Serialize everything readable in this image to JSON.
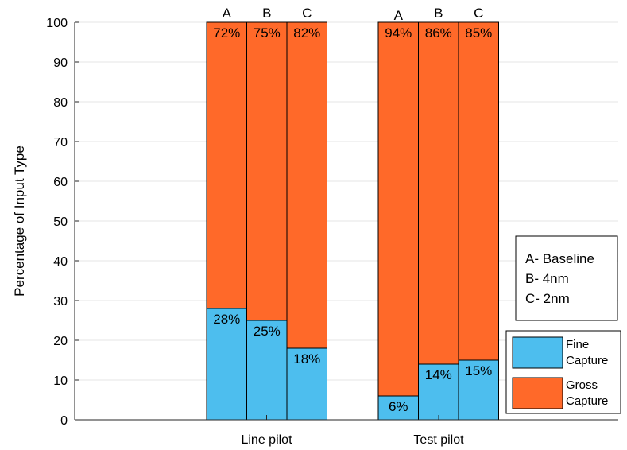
{
  "chart_data": {
    "type": "bar",
    "stacked": true,
    "categories": [
      "Line pilot",
      "Test pilot"
    ],
    "bar_letters": [
      "A",
      "B",
      "C"
    ],
    "series": [
      {
        "name": "Fine Capture",
        "legend_lines": [
          "Fine",
          "Capture"
        ],
        "color": "#4DBEEE",
        "values": [
          [
            28,
            25,
            18
          ],
          [
            6,
            14,
            15
          ]
        ],
        "labels": [
          [
            "28%",
            "25%",
            "18%"
          ],
          [
            "6%",
            "14%",
            "15%"
          ]
        ]
      },
      {
        "name": "Gross Capture",
        "legend_lines": [
          "Gross",
          "Capture"
        ],
        "color": "#FF6929",
        "values": [
          [
            72,
            75,
            82
          ],
          [
            94,
            86,
            85
          ]
        ],
        "labels": [
          [
            "72%",
            "75%",
            "82%"
          ],
          [
            "94%",
            "86%",
            "85%"
          ]
        ]
      }
    ],
    "title": "",
    "xlabel": "",
    "ylabel": "Percentage of Input Type",
    "ylim": [
      0,
      100
    ],
    "yticks": [
      0,
      10,
      20,
      30,
      40,
      50,
      60,
      70,
      80,
      90,
      100
    ],
    "grid": true,
    "legend_position": "bottom-right",
    "note_lines": [
      "A- Baseline",
      "B- 4nm",
      "C- 2nm"
    ]
  }
}
